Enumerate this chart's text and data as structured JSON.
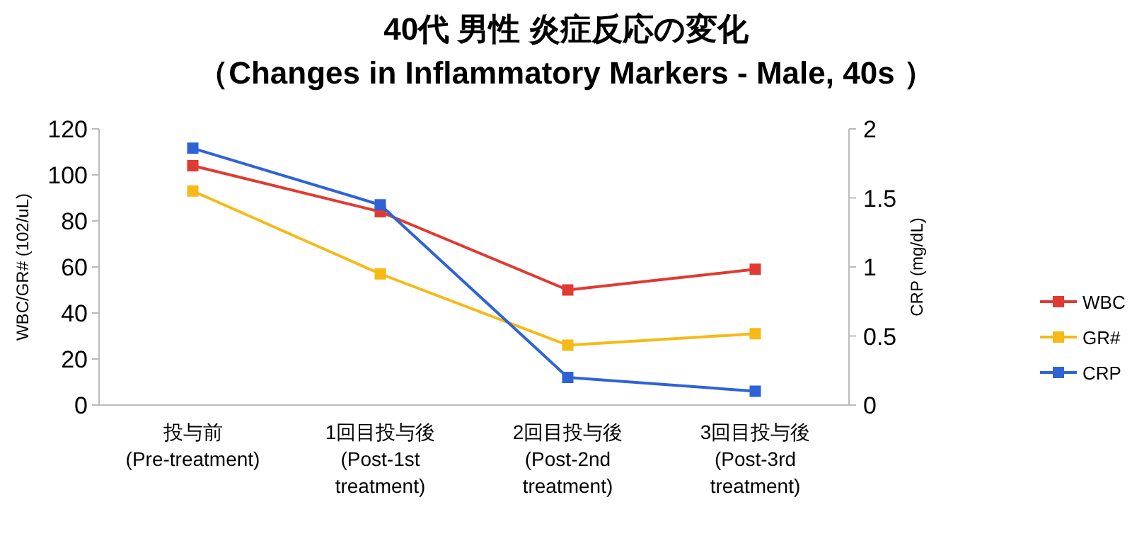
{
  "chart_data": {
    "type": "line",
    "title": "40代 男性 炎症反応の変化",
    "subtitle": "（Changes in Inflammatory Markers - Male, 40s ）",
    "categories": [
      "投与前\n(Pre-treatment)",
      "1回目投与後\n(Post-1st\ntreatment)",
      "2回目投与後\n(Post-2nd\ntreatment)",
      "3回目投与後\n(Post-3rd\ntreatment)"
    ],
    "ylabel": "WBC/GR# (102/uL)",
    "y2label": "CRP (mg/dL)",
    "ylim": [
      0,
      120
    ],
    "yticks": [
      0,
      20,
      40,
      60,
      80,
      100,
      120
    ],
    "y2lim": [
      0,
      2
    ],
    "y2ticks": [
      0,
      0.5,
      1,
      1.5,
      2
    ],
    "series": [
      {
        "name": "WBC",
        "color": "#e03a32",
        "values": [
          104,
          84,
          50,
          59
        ]
      },
      {
        "name": "GR#",
        "color": "#f7b916",
        "values": [
          93,
          57,
          26,
          31
        ]
      },
      {
        "name": "CRP",
        "color": "#2e63d8",
        "values": [
          1.86,
          1.45,
          0.2,
          0.1
        ],
        "axis": "y2"
      }
    ],
    "marker": "square",
    "legend": "right",
    "grid": false
  }
}
